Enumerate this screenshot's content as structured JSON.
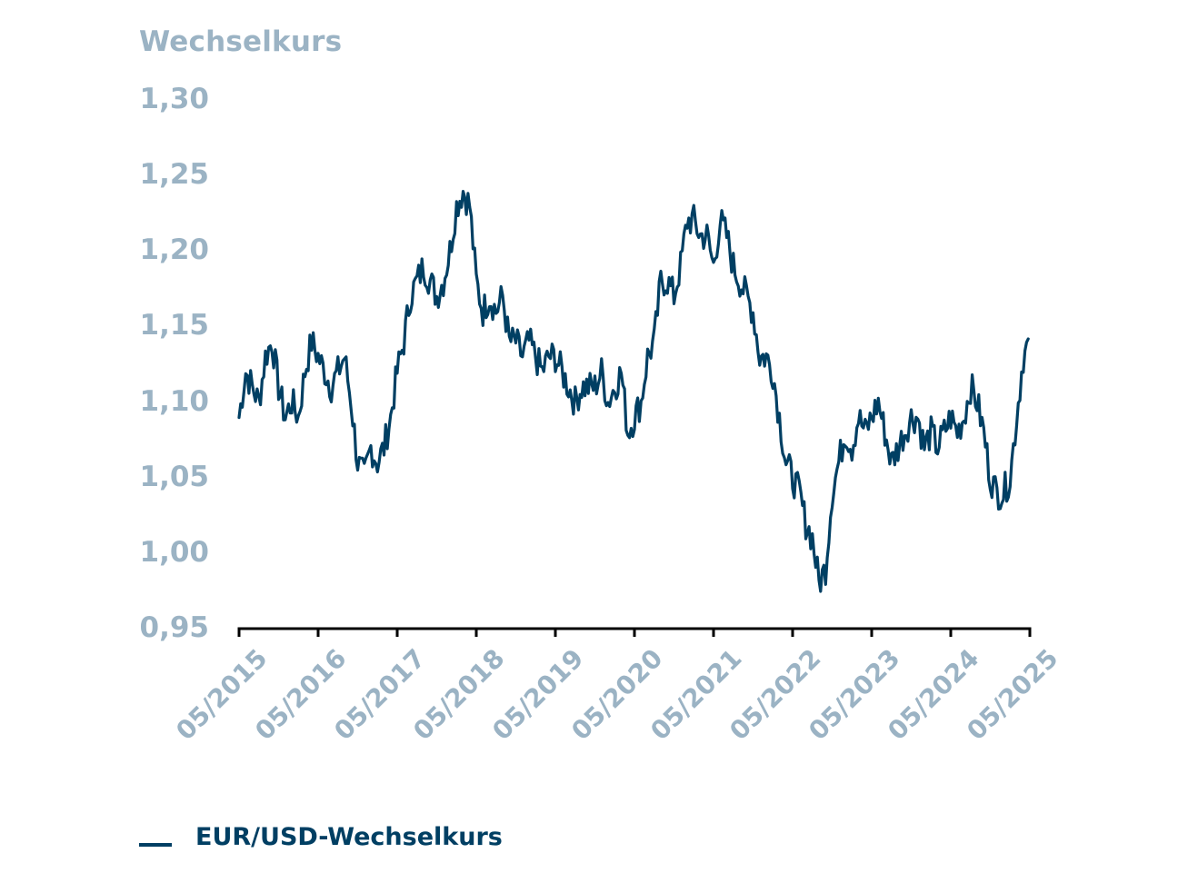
{
  "chart_data": {
    "type": "line",
    "title": "",
    "ylabel": "Wechselkurs",
    "xlabel": "",
    "ylim": [
      0.95,
      1.3
    ],
    "yticks": [
      "1,30",
      "1,25",
      "1,20",
      "1,15",
      "1,10",
      "1,05",
      "1,00",
      "0,95"
    ],
    "xticks": [
      "05/2015",
      "05/2016",
      "05/2017",
      "05/2018",
      "05/2019",
      "05/2020",
      "05/2021",
      "05/2022",
      "05/2023",
      "05/2024",
      "05/2025"
    ],
    "grid": false,
    "legend_position": "bottom-left",
    "series": [
      {
        "name": "EUR/USD-Wechselkurs",
        "color": "#003f63",
        "x_start": "05/2015",
        "x_end": "01/2025",
        "frequency": "monthly (approx.)",
        "values": [
          1.09,
          1.12,
          1.11,
          1.1,
          1.13,
          1.14,
          1.11,
          1.09,
          1.1,
          1.09,
          1.12,
          1.14,
          1.13,
          1.12,
          1.11,
          1.12,
          1.13,
          1.1,
          1.06,
          1.05,
          1.07,
          1.06,
          1.07,
          1.09,
          1.12,
          1.14,
          1.17,
          1.18,
          1.19,
          1.18,
          1.17,
          1.18,
          1.2,
          1.23,
          1.24,
          1.23,
          1.18,
          1.16,
          1.17,
          1.16,
          1.17,
          1.14,
          1.14,
          1.13,
          1.14,
          1.13,
          1.12,
          1.13,
          1.13,
          1.12,
          1.11,
          1.1,
          1.11,
          1.11,
          1.11,
          1.12,
          1.1,
          1.11,
          1.12,
          1.08,
          1.09,
          1.1,
          1.13,
          1.14,
          1.18,
          1.18,
          1.17,
          1.19,
          1.22,
          1.22,
          1.21,
          1.21,
          1.19,
          1.22,
          1.21,
          1.19,
          1.18,
          1.17,
          1.16,
          1.13,
          1.13,
          1.12,
          1.09,
          1.06,
          1.05,
          1.04,
          1.02,
          1.01,
          0.98,
          0.99,
          1.04,
          1.06,
          1.08,
          1.07,
          1.09,
          1.08,
          1.09,
          1.1,
          1.08,
          1.06,
          1.07,
          1.08,
          1.09,
          1.09,
          1.07,
          1.08,
          1.07,
          1.08,
          1.09,
          1.08,
          1.09,
          1.11,
          1.1,
          1.08,
          1.05,
          1.04,
          1.04,
          1.05,
          1.09,
          1.13,
          1.14
        ]
      }
    ]
  },
  "axis": {
    "y_title": "Wechselkurs"
  },
  "legend": {
    "items": [
      {
        "label": "EUR/USD-Wechselkurs",
        "color": "#003f63",
        "swatch": "line"
      }
    ]
  },
  "colors": {
    "line": "#003f63",
    "axis_labels": "#9bb3c4",
    "axis_line": "#000000"
  }
}
